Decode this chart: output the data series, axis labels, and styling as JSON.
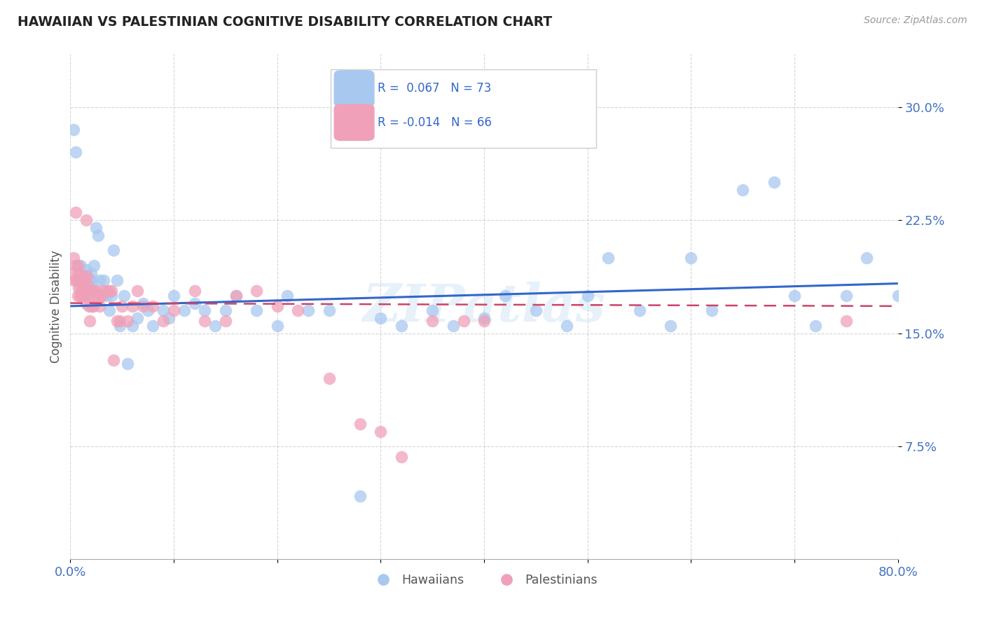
{
  "title": "HAWAIIAN VS PALESTINIAN COGNITIVE DISABILITY CORRELATION CHART",
  "source": "Source: ZipAtlas.com",
  "ylabel": "Cognitive Disability",
  "ytick_labels": [
    "7.5%",
    "15.0%",
    "22.5%",
    "30.0%"
  ],
  "ytick_values": [
    0.075,
    0.15,
    0.225,
    0.3
  ],
  "xlim": [
    0.0,
    0.8
  ],
  "ylim": [
    0.0,
    0.335
  ],
  "legend_hawaiians": "Hawaiians",
  "legend_palestinians": "Palestinians",
  "R_hawaiian": "0.067",
  "N_hawaiian": "73",
  "R_palestinian": "-0.014",
  "N_palestinian": "66",
  "color_hawaiian": "#a8c8f0",
  "color_palestinian": "#f0a0b8",
  "line_color_hawaiian": "#3366cc",
  "line_color_palestinian": "#cc4466",
  "background_color": "#ffffff",
  "hawaiian_x": [
    0.003,
    0.005,
    0.007,
    0.008,
    0.009,
    0.01,
    0.01,
    0.012,
    0.013,
    0.014,
    0.015,
    0.016,
    0.017,
    0.018,
    0.019,
    0.02,
    0.021,
    0.022,
    0.023,
    0.025,
    0.027,
    0.028,
    0.03,
    0.032,
    0.035,
    0.038,
    0.04,
    0.042,
    0.045,
    0.048,
    0.052,
    0.055,
    0.06,
    0.065,
    0.07,
    0.075,
    0.08,
    0.09,
    0.095,
    0.1,
    0.11,
    0.12,
    0.13,
    0.14,
    0.15,
    0.16,
    0.18,
    0.2,
    0.21,
    0.23,
    0.25,
    0.28,
    0.3,
    0.32,
    0.35,
    0.37,
    0.4,
    0.42,
    0.45,
    0.48,
    0.5,
    0.52,
    0.55,
    0.58,
    0.6,
    0.62,
    0.65,
    0.68,
    0.7,
    0.72,
    0.75,
    0.77,
    0.8
  ],
  "hawaiian_y": [
    0.285,
    0.27,
    0.195,
    0.185,
    0.19,
    0.18,
    0.195,
    0.185,
    0.175,
    0.188,
    0.192,
    0.178,
    0.182,
    0.185,
    0.175,
    0.19,
    0.185,
    0.178,
    0.195,
    0.22,
    0.215,
    0.185,
    0.175,
    0.185,
    0.175,
    0.165,
    0.175,
    0.205,
    0.185,
    0.155,
    0.175,
    0.13,
    0.155,
    0.16,
    0.17,
    0.165,
    0.155,
    0.165,
    0.16,
    0.175,
    0.165,
    0.17,
    0.165,
    0.155,
    0.165,
    0.175,
    0.165,
    0.155,
    0.175,
    0.165,
    0.165,
    0.042,
    0.16,
    0.155,
    0.165,
    0.155,
    0.16,
    0.175,
    0.165,
    0.155,
    0.175,
    0.2,
    0.165,
    0.155,
    0.2,
    0.165,
    0.245,
    0.25,
    0.175,
    0.155,
    0.175,
    0.2,
    0.175
  ],
  "palestinian_x": [
    0.002,
    0.003,
    0.004,
    0.005,
    0.005,
    0.006,
    0.007,
    0.007,
    0.008,
    0.008,
    0.009,
    0.009,
    0.01,
    0.01,
    0.011,
    0.011,
    0.012,
    0.012,
    0.013,
    0.013,
    0.014,
    0.015,
    0.015,
    0.016,
    0.017,
    0.018,
    0.019,
    0.02,
    0.021,
    0.022,
    0.023,
    0.024,
    0.025,
    0.027,
    0.028,
    0.03,
    0.032,
    0.035,
    0.038,
    0.04,
    0.042,
    0.045,
    0.048,
    0.05,
    0.055,
    0.06,
    0.065,
    0.07,
    0.08,
    0.09,
    0.1,
    0.12,
    0.13,
    0.15,
    0.16,
    0.18,
    0.2,
    0.22,
    0.25,
    0.28,
    0.3,
    0.32,
    0.35,
    0.38,
    0.4,
    0.75
  ],
  "palestinian_y": [
    0.19,
    0.2,
    0.185,
    0.195,
    0.23,
    0.185,
    0.195,
    0.175,
    0.19,
    0.18,
    0.185,
    0.175,
    0.185,
    0.175,
    0.188,
    0.178,
    0.185,
    0.178,
    0.175,
    0.185,
    0.175,
    0.225,
    0.17,
    0.188,
    0.182,
    0.168,
    0.158,
    0.178,
    0.168,
    0.168,
    0.178,
    0.175,
    0.178,
    0.172,
    0.168,
    0.175,
    0.178,
    0.178,
    0.178,
    0.178,
    0.132,
    0.158,
    0.158,
    0.168,
    0.158,
    0.168,
    0.178,
    0.168,
    0.168,
    0.158,
    0.165,
    0.178,
    0.158,
    0.158,
    0.175,
    0.178,
    0.168,
    0.165,
    0.12,
    0.09,
    0.085,
    0.068,
    0.158,
    0.158,
    0.158,
    0.158
  ],
  "hawaiian_line_x": [
    0.0,
    0.8
  ],
  "hawaiian_line_y": [
    0.168,
    0.183
  ],
  "palestinian_line_x": [
    0.0,
    0.8
  ],
  "palestinian_line_y": [
    0.17,
    0.168
  ]
}
